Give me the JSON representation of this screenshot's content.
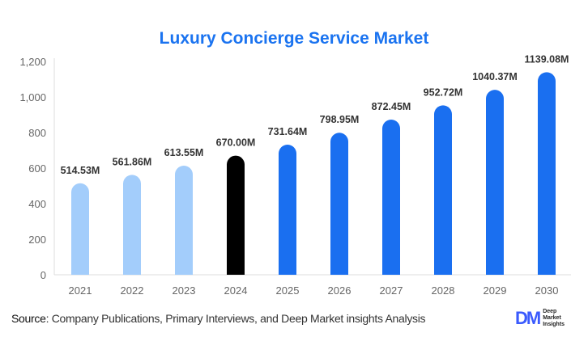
{
  "chart_data": {
    "type": "bar",
    "title": "Luxury Concierge Service Market",
    "categories": [
      "2021",
      "2022",
      "2023",
      "2024",
      "2025",
      "2026",
      "2027",
      "2028",
      "2029",
      "2030"
    ],
    "values": [
      514.53,
      561.86,
      613.55,
      670.0,
      731.64,
      798.95,
      872.45,
      952.72,
      1040.37,
      1139.08
    ],
    "data_labels": [
      "514.53M",
      "561.86M",
      "613.55M",
      "670.00M",
      "731.64M",
      "798.95M",
      "872.45M",
      "952.72M",
      "1040.37M",
      "1139.08M"
    ],
    "bar_colors": [
      "#a3cdfb",
      "#a3cdfb",
      "#a3cdfb",
      "#000000",
      "#1a6ff0",
      "#1a6ff0",
      "#1a6ff0",
      "#1a6ff0",
      "#1a6ff0",
      "#1a6ff0"
    ],
    "ylim": [
      0,
      1200
    ],
    "yticks": [
      0,
      200,
      400,
      600,
      800,
      1000,
      1200
    ],
    "ytick_labels": [
      "0",
      "200",
      "400",
      "600",
      "800",
      "1,000",
      "1,200"
    ],
    "xlabel": "",
    "ylabel": "",
    "grid": false,
    "legend": "none"
  },
  "footer": {
    "source_label": "Source",
    "source_text": ": Company Publications, Primary Interviews, and Deep Market insights Analysis",
    "logo_mark": "DM",
    "logo_text": [
      "Deep",
      "Market",
      "Insights"
    ]
  }
}
